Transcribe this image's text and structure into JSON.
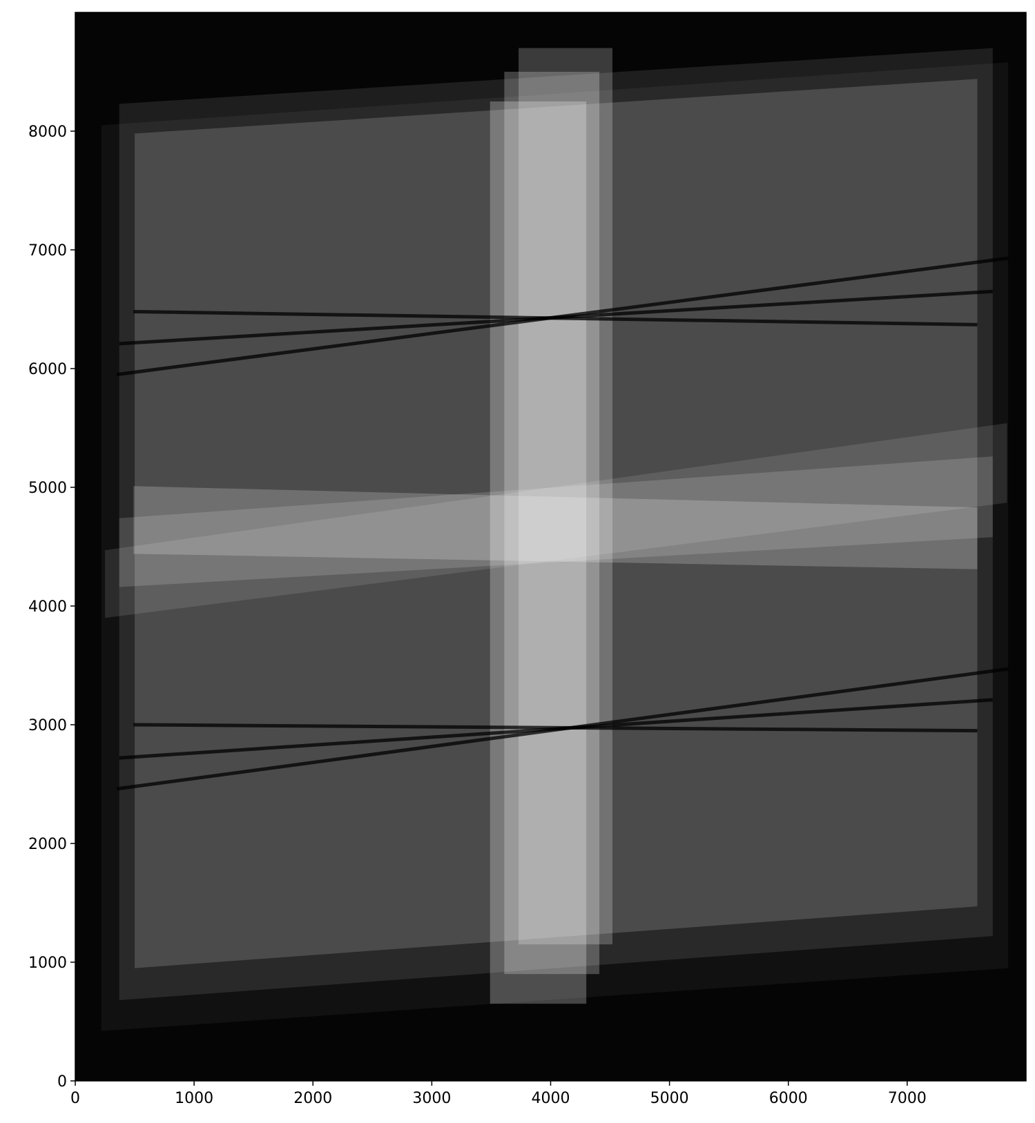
{
  "chart_data": {
    "type": "heatmap",
    "title": "",
    "xlabel": "",
    "ylabel": "",
    "colormap": "gray",
    "xlim": [
      0,
      8000
    ],
    "ylim": [
      0,
      9000
    ],
    "x_ticks": [
      0,
      1000,
      2000,
      3000,
      4000,
      5000,
      6000,
      7000
    ],
    "y_ticks": [
      0,
      1000,
      2000,
      3000,
      4000,
      5000,
      6000,
      7000,
      8000
    ],
    "x_tick_labels": [
      "0",
      "1000",
      "2000",
      "3000",
      "4000",
      "5000",
      "6000",
      "7000"
    ],
    "y_tick_labels": [
      "0",
      "1000",
      "2000",
      "3000",
      "4000",
      "5000",
      "6000",
      "7000",
      "8000"
    ],
    "background_intensity": 0.02,
    "horizontal_exposures": [
      {
        "x": [
          220,
          7850
        ],
        "y_left": [
          420,
          8050
        ],
        "y_right": [
          950,
          8580
        ],
        "intensity": 0.05
      },
      {
        "x": [
          370,
          7720
        ],
        "y_left": [
          680,
          8230
        ],
        "y_right": [
          1220,
          8700
        ],
        "intensity": 0.1
      },
      {
        "x": [
          500,
          7590
        ],
        "y_left": [
          950,
          7980
        ],
        "y_right": [
          1470,
          8440
        ],
        "intensity": 0.16
      }
    ],
    "horizontal_band_exposures": [
      {
        "x": [
          250,
          7840
        ],
        "y_left": [
          3900,
          4470
        ],
        "y_right": [
          4870,
          5540
        ],
        "intensity": 0.11
      },
      {
        "x": [
          370,
          7720
        ],
        "y_left": [
          4160,
          4740
        ],
        "y_right": [
          4580,
          5260
        ],
        "intensity": 0.15
      },
      {
        "x": [
          490,
          7590
        ],
        "y_left": [
          4440,
          5010
        ],
        "y_right": [
          4310,
          4830
        ],
        "intensity": 0.2
      }
    ],
    "vertical_exposures": [
      {
        "x": [
          3730,
          4520
        ],
        "y": [
          1150,
          8700
        ],
        "intensity": 0.22
      },
      {
        "x": [
          3610,
          4410
        ],
        "y": [
          900,
          8500
        ],
        "intensity": 0.24
      },
      {
        "x": [
          3490,
          4300
        ],
        "y": [
          650,
          8250
        ],
        "intensity": 0.26
      }
    ],
    "chip_gaps": [
      {
        "x": [
          350,
          7850
        ],
        "y": [
          2460,
          3470
        ]
      },
      {
        "x": [
          370,
          7720
        ],
        "y": [
          2720,
          3210
        ]
      },
      {
        "x": [
          490,
          7590
        ],
        "y": [
          3000,
          2950
        ]
      },
      {
        "x": [
          350,
          7850
        ],
        "y": [
          5950,
          6930
        ]
      },
      {
        "x": [
          370,
          7720
        ],
        "y": [
          6210,
          6650
        ]
      },
      {
        "x": [
          490,
          7590
        ],
        "y": [
          6480,
          6370
        ]
      }
    ]
  }
}
